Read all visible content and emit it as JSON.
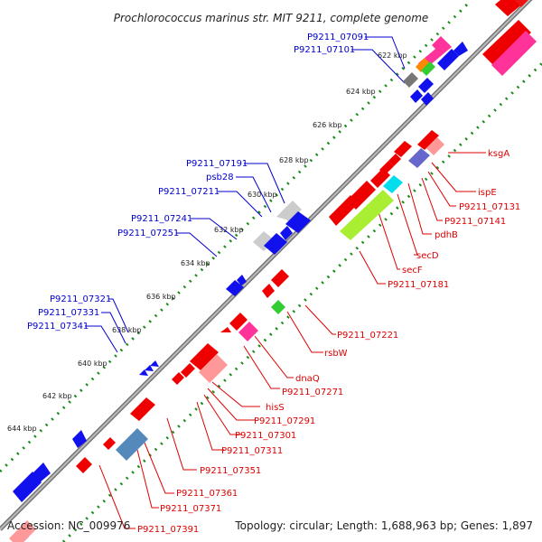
{
  "title": "Prochlorococcus marinus str. MIT 9211, complete genome",
  "footer": {
    "accession": "Accession: NC_009976",
    "topology": "Topology: circular; Length: 1,688,963 bp; Genes: 1,897"
  },
  "colors": {
    "forward_label": "#0000cc",
    "reverse_label": "#dd0000",
    "forward_gene": "#0000ee",
    "reverse_gene": "#ff0000",
    "backbone": "#999999",
    "tick": "#228822"
  },
  "ruler_ticks": [
    "622 kbp",
    "624 kbp",
    "626 kbp",
    "628 kbp",
    "630 kbp",
    "632 kbp",
    "634 kbp",
    "636 kbp",
    "638 kbp",
    "640 kbp",
    "642 kbp",
    "644 kbp"
  ],
  "forward_genes": [
    {
      "id": "fwd-1",
      "label": "P9211_07091"
    },
    {
      "id": "fwd-2",
      "label": "P9211_07101"
    },
    {
      "id": "fwd-3",
      "label": "P9211_07191"
    },
    {
      "id": "fwd-4",
      "label": "psb28"
    },
    {
      "id": "fwd-5",
      "label": "P9211_07211"
    },
    {
      "id": "fwd-6",
      "label": "P9211_07241"
    },
    {
      "id": "fwd-7",
      "label": "P9211_07251"
    },
    {
      "id": "fwd-8",
      "label": "P9211_07321"
    },
    {
      "id": "fwd-9",
      "label": "P9211_07331"
    },
    {
      "id": "fwd-10",
      "label": "P9211_07341"
    }
  ],
  "reverse_genes": [
    {
      "id": "rev-1",
      "label": "ksgA"
    },
    {
      "id": "rev-2",
      "label": "ispE"
    },
    {
      "id": "rev-3",
      "label": "P9211_07131"
    },
    {
      "id": "rev-4",
      "label": "P9211_07141"
    },
    {
      "id": "rev-5",
      "label": "pdhB"
    },
    {
      "id": "rev-6",
      "label": "secD"
    },
    {
      "id": "rev-7",
      "label": "secF"
    },
    {
      "id": "rev-8",
      "label": "P9211_07181"
    },
    {
      "id": "rev-9",
      "label": "P9211_07221"
    },
    {
      "id": "rev-10",
      "label": "rsbW"
    },
    {
      "id": "rev-11",
      "label": "dnaQ"
    },
    {
      "id": "rev-12",
      "label": "P9211_07271"
    },
    {
      "id": "rev-13",
      "label": "hisS"
    },
    {
      "id": "rev-14",
      "label": "P9211_07291"
    },
    {
      "id": "rev-15",
      "label": "P9211_07301"
    },
    {
      "id": "rev-16",
      "label": "P9211_07311"
    },
    {
      "id": "rev-17",
      "label": "P9211_07351"
    },
    {
      "id": "rev-18",
      "label": "P9211_07361"
    },
    {
      "id": "rev-19",
      "label": "P9211_07371"
    },
    {
      "id": "rev-20",
      "label": "P9211_07391"
    }
  ]
}
